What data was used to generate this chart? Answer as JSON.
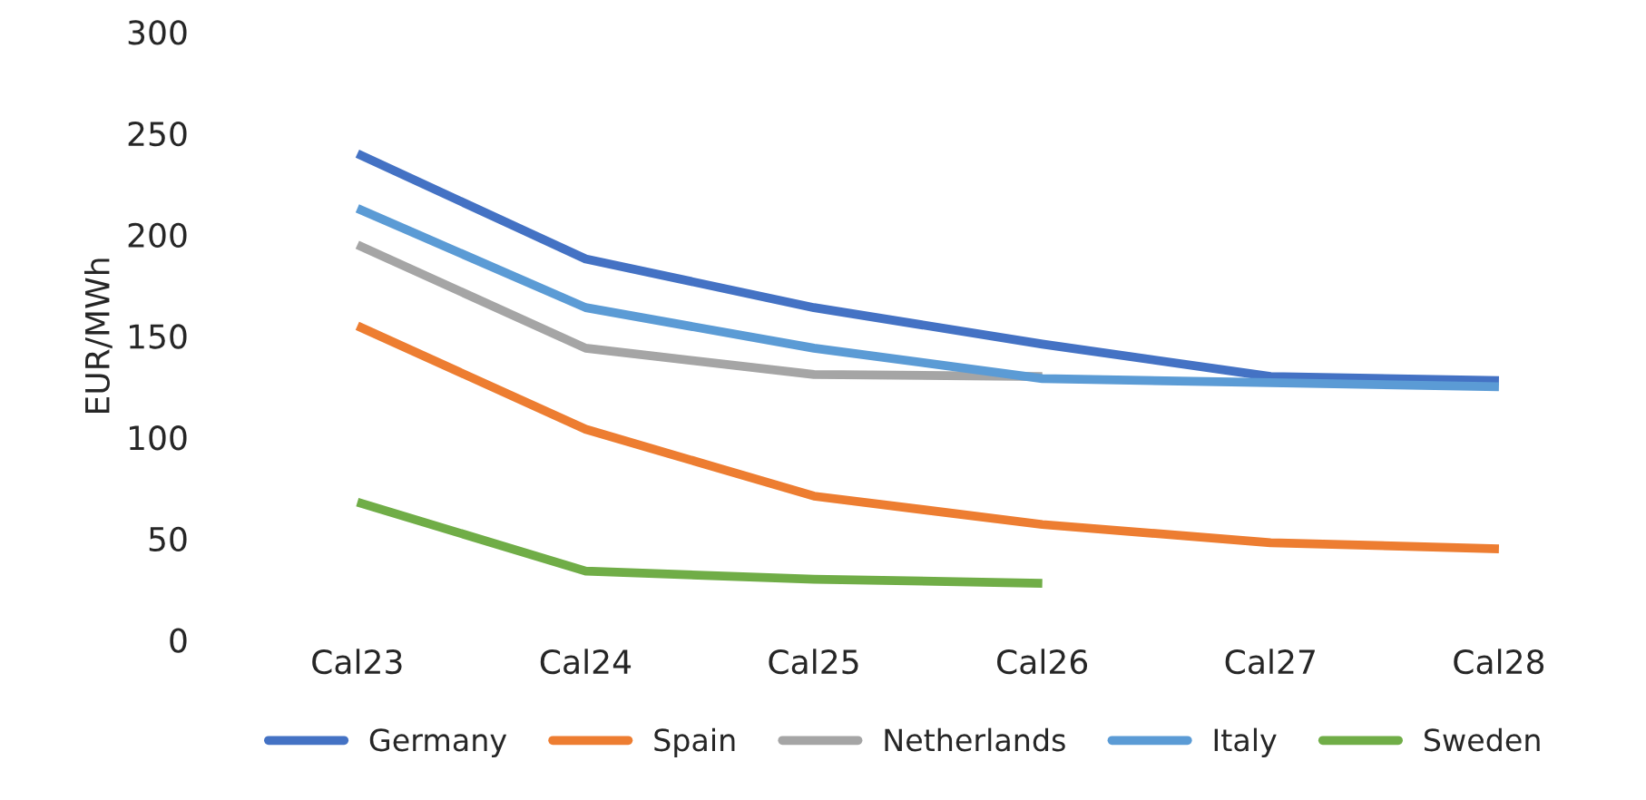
{
  "chart_data": {
    "type": "line",
    "ylabel": "EUR/MWh",
    "categories": [
      "Cal23",
      "Cal24",
      "Cal25",
      "Cal26",
      "Cal27",
      "Cal28"
    ],
    "series": [
      {
        "name": "Germany",
        "color": "#4472c4",
        "values": [
          240,
          188,
          164,
          146,
          130,
          128
        ]
      },
      {
        "name": "Spain",
        "color": "#ed7d31",
        "values": [
          155,
          104,
          71,
          57,
          48,
          45
        ]
      },
      {
        "name": "Netherlands",
        "color": "#a5a5a5",
        "values": [
          195,
          144,
          131,
          130,
          null,
          null
        ]
      },
      {
        "name": "Italy",
        "color": "#5b9bd5",
        "values": [
          213,
          164,
          144,
          129,
          127,
          125
        ]
      },
      {
        "name": "Sweden",
        "color": "#70ad47",
        "values": [
          68,
          34,
          30,
          28,
          null,
          null
        ]
      }
    ],
    "ylim": [
      0,
      300
    ],
    "yticks": [
      0,
      50,
      100,
      150,
      200,
      250,
      300
    ],
    "grid": false,
    "legend": "bottom",
    "marker": "none",
    "line_style": "solid"
  }
}
